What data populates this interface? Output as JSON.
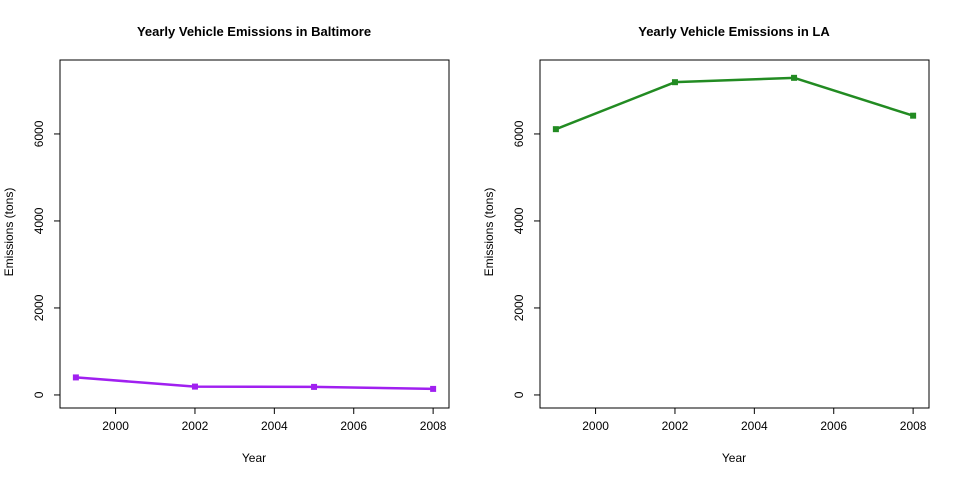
{
  "chart_data": [
    {
      "type": "line",
      "title": "Yearly Vehicle Emissions in Baltimore",
      "xlabel": "Year",
      "ylabel": "Emissions (tons)",
      "x": [
        1999,
        2002,
        2005,
        2008
      ],
      "series": [
        {
          "values": [
            403,
            192,
            185,
            139
          ],
          "color": "#a020f0"
        }
      ],
      "xlim": [
        1998.6,
        2008.4
      ],
      "ylim": [
        -300,
        7700
      ],
      "xticks": [
        "2000",
        "2002",
        "2004",
        "2006",
        "2008"
      ],
      "yticks": [
        "0",
        "2000",
        "4000",
        "6000"
      ],
      "grid": false,
      "marker": "square"
    },
    {
      "type": "line",
      "title": "Yearly Vehicle Emissions in LA",
      "xlabel": "Year",
      "ylabel": "Emissions (tons)",
      "x": [
        1999,
        2002,
        2005,
        2008
      ],
      "series": [
        {
          "values": [
            6110,
            7190,
            7290,
            6420
          ],
          "color": "#228b22"
        }
      ],
      "xlim": [
        1998.6,
        2008.4
      ],
      "ylim": [
        -300,
        7700
      ],
      "xticks": [
        "2000",
        "2002",
        "2004",
        "2006",
        "2008"
      ],
      "yticks": [
        "0",
        "2000",
        "4000",
        "6000"
      ],
      "grid": false,
      "marker": "square"
    }
  ]
}
